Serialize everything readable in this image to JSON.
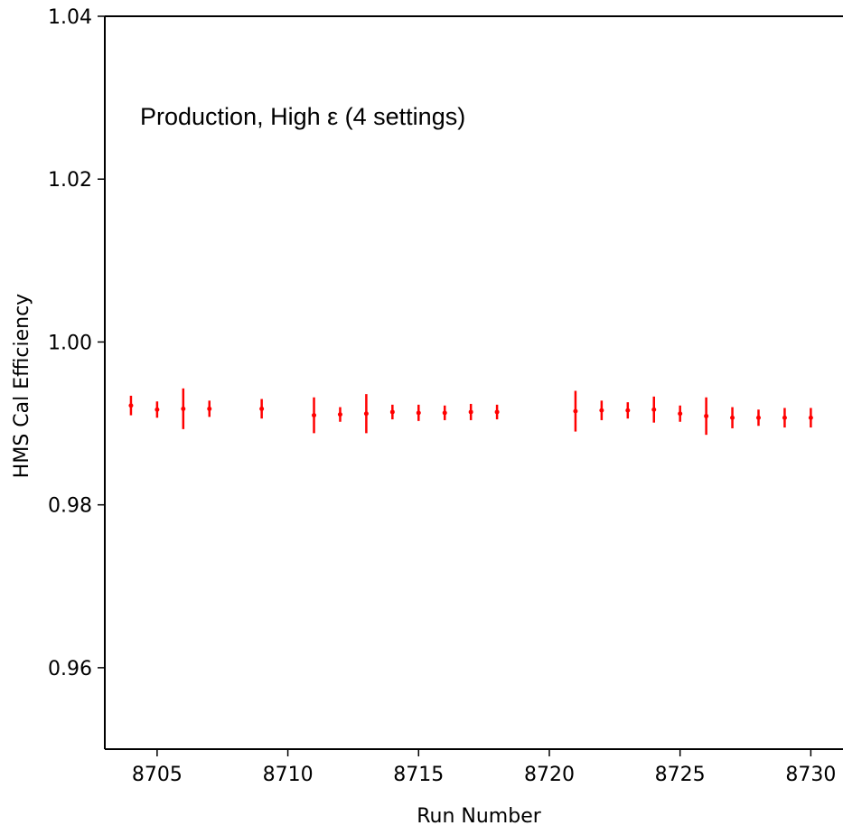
{
  "chart_data": {
    "type": "scatter",
    "title": "",
    "annotation": "Production, High ε (4 settings)",
    "xlabel": "Run Number",
    "ylabel": "HMS Cal Efficiency",
    "xlim": [
      8703,
      8731.3
    ],
    "ylim": [
      0.95,
      1.04
    ],
    "xticks": [
      8705,
      8710,
      8715,
      8720,
      8725,
      8730
    ],
    "yticks": [
      0.96,
      0.98,
      1.0,
      1.02,
      1.04
    ],
    "ytick_labels": [
      "0.96",
      "0.98",
      "1.00",
      "1.02",
      "1.04"
    ],
    "grid": false,
    "marker_color": "#ff0000",
    "points": [
      {
        "x": 8704,
        "y": 0.9922,
        "err": 0.0012
      },
      {
        "x": 8705,
        "y": 0.9917,
        "err": 0.001
      },
      {
        "x": 8706,
        "y": 0.9918,
        "err": 0.0025
      },
      {
        "x": 8707,
        "y": 0.9918,
        "err": 0.001
      },
      {
        "x": 8709,
        "y": 0.9918,
        "err": 0.0012
      },
      {
        "x": 8711,
        "y": 0.991,
        "err": 0.0022
      },
      {
        "x": 8712,
        "y": 0.9911,
        "err": 0.0009
      },
      {
        "x": 8713,
        "y": 0.9912,
        "err": 0.0024
      },
      {
        "x": 8714,
        "y": 0.9914,
        "err": 0.0009
      },
      {
        "x": 8715,
        "y": 0.9913,
        "err": 0.001
      },
      {
        "x": 8716,
        "y": 0.9913,
        "err": 0.0009
      },
      {
        "x": 8717,
        "y": 0.9914,
        "err": 0.001
      },
      {
        "x": 8718,
        "y": 0.9914,
        "err": 0.0009
      },
      {
        "x": 8721,
        "y": 0.9915,
        "err": 0.0025
      },
      {
        "x": 8722,
        "y": 0.9916,
        "err": 0.0012
      },
      {
        "x": 8723,
        "y": 0.9916,
        "err": 0.001
      },
      {
        "x": 8724,
        "y": 0.9917,
        "err": 0.0016
      },
      {
        "x": 8725,
        "y": 0.9912,
        "err": 0.001
      },
      {
        "x": 8726,
        "y": 0.9909,
        "err": 0.0023
      },
      {
        "x": 8727,
        "y": 0.9907,
        "err": 0.0013
      },
      {
        "x": 8728,
        "y": 0.9907,
        "err": 0.001
      },
      {
        "x": 8729,
        "y": 0.9907,
        "err": 0.0012
      },
      {
        "x": 8730,
        "y": 0.9907,
        "err": 0.0012
      }
    ]
  }
}
